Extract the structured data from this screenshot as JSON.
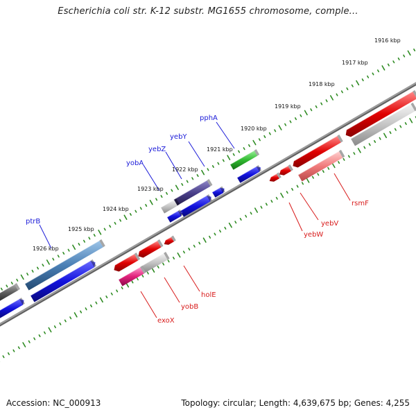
{
  "title": "Escherichia coli str. K-12 substr. MG1655 chromosome, comple...",
  "footer": {
    "accession": "Accession: NC_000913",
    "summary": "Topology: circular; Length: 4,639,675 bp; Genes: 4,255"
  },
  "kbp_labels": [
    "1916 kbp",
    "1917 kbp",
    "1918 kbp",
    "1919 kbp",
    "1920 kbp",
    "1921 kbp",
    "1922 kbp",
    "1923 kbp",
    "1924 kbp",
    "1925 kbp",
    "1926 kbp"
  ],
  "forward_gene_labels": [
    "pphA",
    "yebY",
    "yebZ",
    "yobA",
    "ptrB"
  ],
  "reverse_gene_labels": [
    "rsmF",
    "yebV",
    "yebW",
    "holE",
    "yobB",
    "exoX"
  ],
  "colors": {
    "backbone": "#7a7a7a",
    "tick": "#2e8b22",
    "forward_label": "#1a1ad8",
    "reverse_label": "#d81a1a",
    "cds_blue": "#1111dd",
    "cds_red": "#e00000",
    "cds_pink": "#f07a7a",
    "cds_magenta": "#e0207a",
    "cds_gray": "#c4c4c4",
    "cds_darkgray": "#5e5e5e",
    "cds_steelblue": "#4a7fb5",
    "cds_purple": "#4a3f8a",
    "cds_green": "#2fb82f"
  }
}
